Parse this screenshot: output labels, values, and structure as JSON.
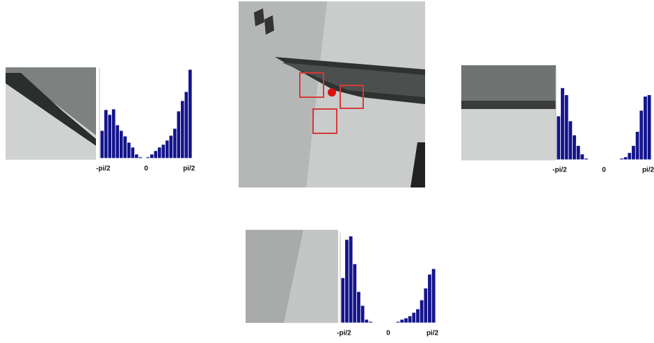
{
  "chart_data": [
    {
      "type": "histogram",
      "color": "#14148c",
      "bins": [
        -1.68,
        -1.54,
        -1.4,
        -1.26,
        -1.12,
        -0.98,
        -0.84,
        -0.7,
        -0.56,
        -0.42,
        -0.28,
        -0.14,
        0,
        0.14,
        0.28,
        0.42,
        0.56,
        0.7,
        0.84,
        0.98,
        1.12,
        1.26,
        1.4,
        1.54,
        1.68
      ],
      "values": [
        40,
        70,
        63,
        71,
        48,
        40,
        32,
        23,
        16,
        6,
        2,
        0,
        2,
        6,
        11,
        16,
        20,
        26,
        33,
        43,
        68,
        83,
        96,
        128
      ],
      "xlim": [
        -1.68,
        1.68
      ],
      "ylim": [
        0,
        130
      ],
      "xticks": [
        {
          "value": -1.5708,
          "label": "-pi/2"
        },
        0,
        {
          "value": 1.5708,
          "label": "pi/2"
        }
      ]
    },
    {
      "type": "histogram",
      "color": "#14148c",
      "bins": [
        -1.68,
        -1.54,
        -1.4,
        -1.26,
        -1.12,
        -0.98,
        -0.84,
        -0.7,
        -0.56,
        -0.42,
        -0.28,
        -0.14,
        0,
        0.14,
        0.28,
        0.42,
        0.56,
        0.7,
        0.84,
        0.98,
        1.12,
        1.26,
        1.4,
        1.54,
        1.68
      ],
      "values": [
        62,
        102,
        92,
        55,
        35,
        20,
        8,
        2,
        0,
        0,
        0,
        0,
        0,
        0,
        0,
        0,
        2,
        4,
        10,
        20,
        40,
        70,
        90,
        92
      ],
      "xlim": [
        -1.68,
        1.68
      ],
      "ylim": [
        0,
        130
      ],
      "xticks": [
        {
          "value": -1.5708,
          "label": "-pi/2"
        },
        0,
        {
          "value": 1.5708,
          "label": "pi/2"
        }
      ]
    },
    {
      "type": "histogram",
      "color": "#14148c",
      "bins": [
        -1.68,
        -1.54,
        -1.4,
        -1.26,
        -1.12,
        -0.98,
        -0.84,
        -0.7,
        -0.56,
        -0.42,
        -0.28,
        -0.14,
        0,
        0.14,
        0.28,
        0.42,
        0.56,
        0.7,
        0.84,
        0.98,
        1.12,
        1.26,
        1.4,
        1.54,
        1.68
      ],
      "values": [
        65,
        120,
        125,
        85,
        45,
        25,
        5,
        2,
        0,
        0,
        0,
        0,
        0,
        0,
        2,
        5,
        7,
        10,
        15,
        20,
        33,
        50,
        70,
        78
      ],
      "xlim": [
        -1.68,
        1.68
      ],
      "ylim": [
        0,
        130
      ],
      "xticks": [
        {
          "value": -1.5708,
          "label": "-pi/2"
        },
        0,
        {
          "value": 1.5708,
          "label": "pi/2"
        }
      ]
    }
  ]
}
